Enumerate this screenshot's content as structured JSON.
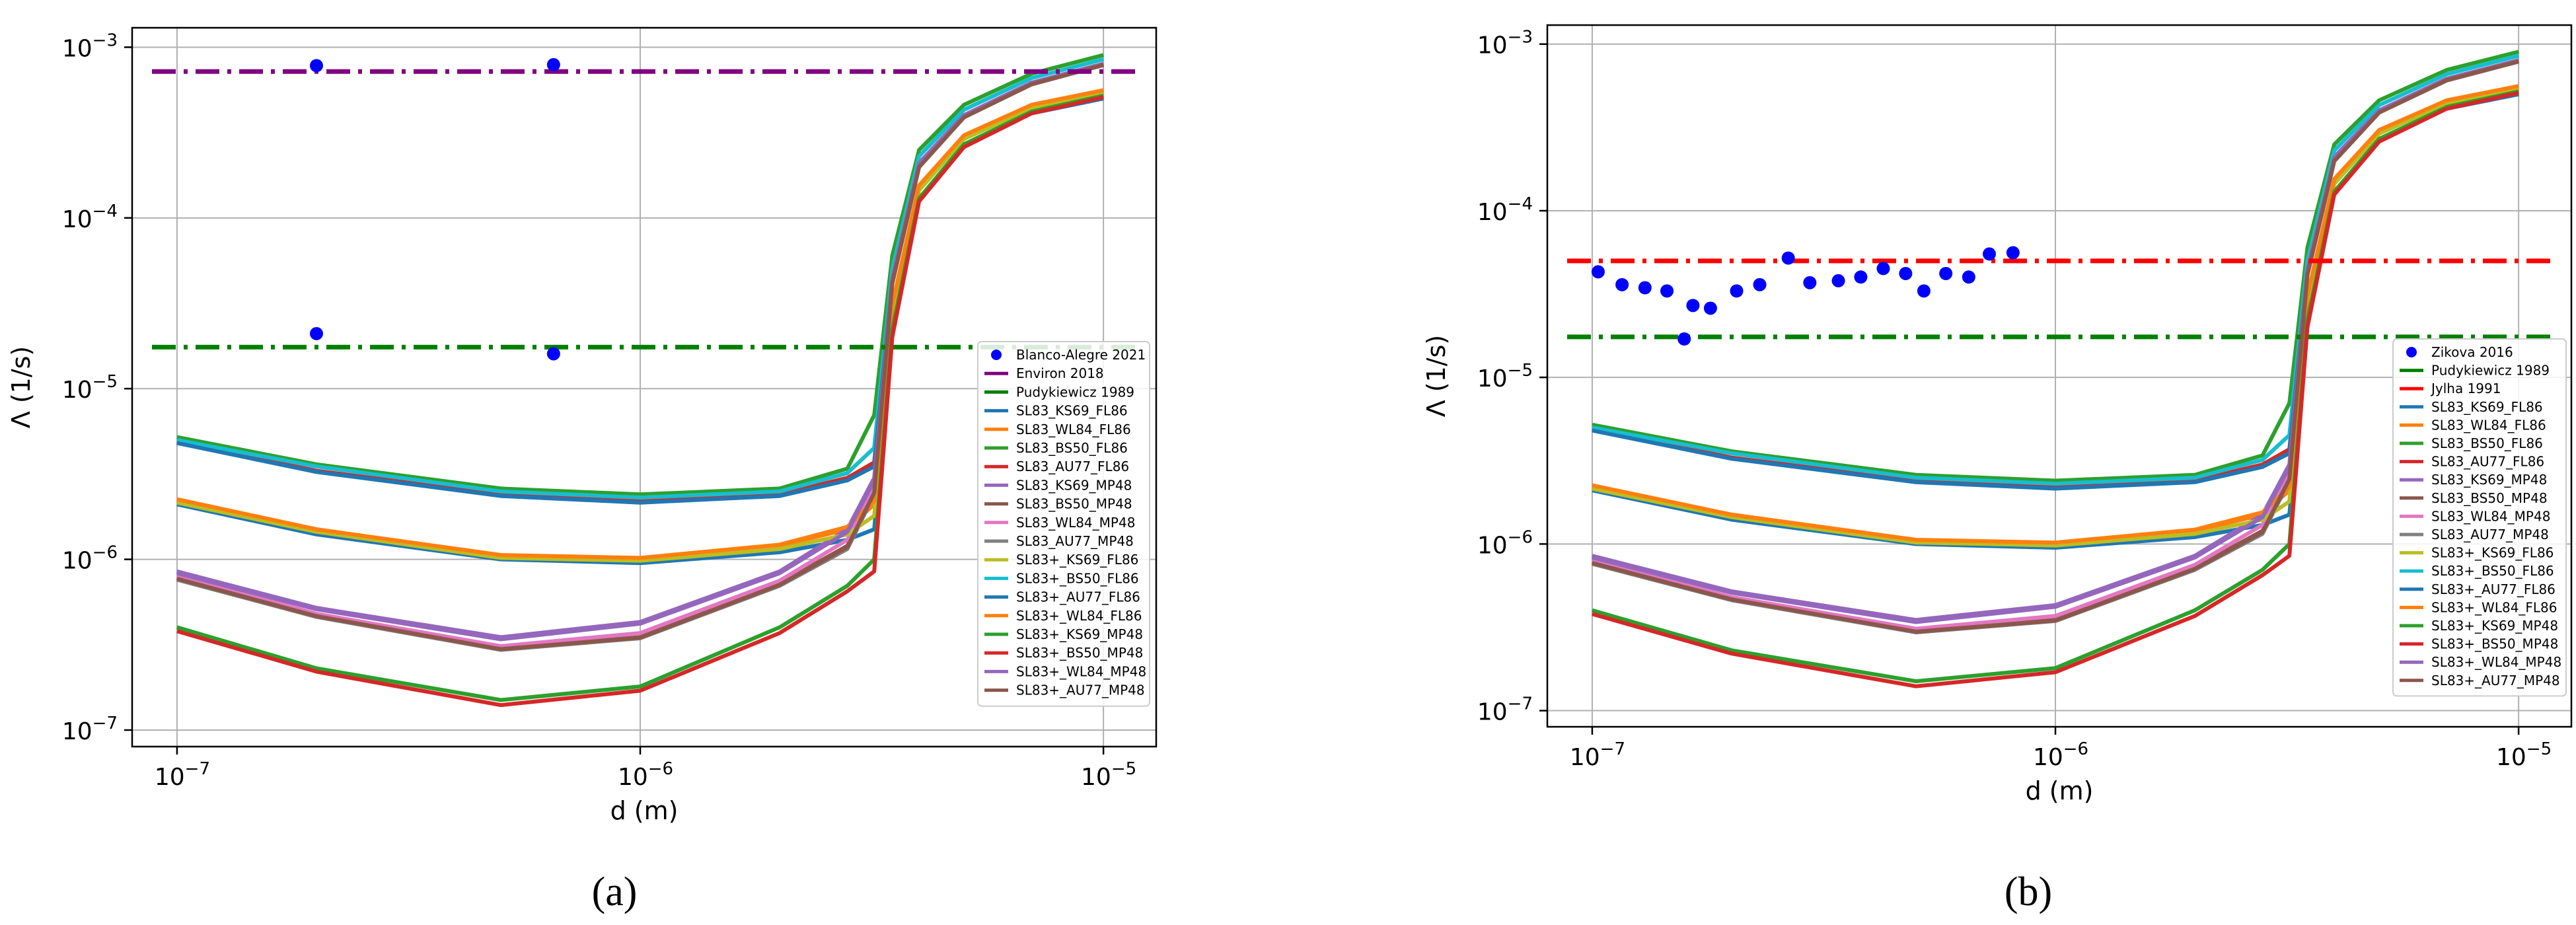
{
  "chart_data": [
    {
      "type": "line",
      "panel_label": "(a)",
      "xlabel": "d (m)",
      "ylabel": "Λ (1/s)",
      "xscale": "log",
      "yscale": "log",
      "xlim": [
        8e-08,
        1.3e-05
      ],
      "ylim": [
        8e-08,
        0.0013
      ],
      "grid": true,
      "legend_position": "right",
      "x_ticks": [
        {
          "value": 1e-07,
          "label": "10^-7"
        },
        {
          "value": 1e-06,
          "label": "10^-6"
        },
        {
          "value": 1e-05,
          "label": "10^-5"
        }
      ],
      "y_ticks": [
        {
          "value": 1e-07,
          "label": "10^-7"
        },
        {
          "value": 1e-06,
          "label": "10^-6"
        },
        {
          "value": 1e-05,
          "label": "10^-5"
        },
        {
          "value": 0.0001,
          "label": "10^-4"
        },
        {
          "value": 0.001,
          "label": "10^-3"
        }
      ],
      "scatter": {
        "name": "Blanco-Alegre 2021",
        "color": "#0000ff",
        "points": [
          [
            2e-07,
            0.00078
          ],
          [
            6.5e-07,
            0.00079
          ],
          [
            2e-07,
            2.1e-05
          ],
          [
            6.5e-07,
            1.6e-05
          ]
        ]
      },
      "reference_lines": [
        {
          "name": "Environ 2018",
          "color": "#800080",
          "value": 0.00072
        },
        {
          "name": "Pudykiewicz 1989",
          "color": "#008000",
          "value": 1.75e-05
        }
      ],
      "curve_x": [
        1e-07,
        2e-07,
        5e-07,
        1e-06,
        2e-06,
        2.8e-06,
        3.2e-06,
        3.5e-06,
        4e-06,
        5e-06,
        7e-06,
        1e-05
      ],
      "series": [
        {
          "name": "SL83_KS69_FL86",
          "color": "#1f77b4",
          "values": [
            2.1e-06,
            1.4e-06,
            1e-06,
            9.5e-07,
            1.1e-06,
            1.3e-06,
            1.5e-06,
            2.5e-05,
            0.00013,
            0.00027,
            0.00041,
            0.0005
          ]
        },
        {
          "name": "SL83_WL84_FL86",
          "color": "#ff7f0e",
          "values": [
            2.2e-06,
            1.5e-06,
            1.05e-06,
            1e-06,
            1.2e-06,
            1.5e-06,
            2.1e-06,
            3e-05,
            0.00015,
            0.0003,
            0.00045,
            0.00055
          ]
        },
        {
          "name": "SL83_BS50_FL86",
          "color": "#2ca02c",
          "values": [
            5.2e-06,
            3.6e-06,
            2.6e-06,
            2.4e-06,
            2.6e-06,
            3.4e-06,
            7e-06,
            6e-05,
            0.00025,
            0.00046,
            0.0007,
            0.0009
          ]
        },
        {
          "name": "SL83_AU77_FL86",
          "color": "#d62728",
          "values": [
            4.9e-06,
            3.3e-06,
            2.4e-06,
            2.2e-06,
            2.4e-06,
            3e-06,
            3.7e-06,
            4.5e-05,
            0.00021,
            0.0004,
            0.00062,
            0.0008
          ]
        },
        {
          "name": "SL83_KS69_MP48",
          "color": "#9467bd",
          "values": [
            8.5e-07,
            5.2e-07,
            3.5e-07,
            4.3e-07,
            8.5e-07,
            1.5e-06,
            3e-06,
            4.5e-05,
            0.00021,
            0.0004,
            0.00062,
            0.0008
          ]
        },
        {
          "name": "SL83_BS50_MP48",
          "color": "#8c564b",
          "values": [
            7.8e-07,
            4.7e-07,
            3e-07,
            3.5e-07,
            7.2e-07,
            1.2e-06,
            2.5e-06,
            4.2e-05,
            0.0002,
            0.00039,
            0.00061,
            0.00079
          ]
        },
        {
          "name": "SL83_WL84_MP48",
          "color": "#e377c2",
          "values": [
            8e-07,
            4.8e-07,
            3.1e-07,
            3.7e-07,
            7.5e-07,
            1.3e-06,
            2.6e-06,
            4.3e-05,
            0.000205,
            0.000395,
            0.000615,
            0.000795
          ]
        },
        {
          "name": "SL83_AU77_MP48",
          "color": "#7f7f7f",
          "values": [
            7.6e-07,
            4.6e-07,
            2.95e-07,
            3.45e-07,
            7e-07,
            1.15e-06,
            2.4e-06,
            4.1e-05,
            0.000198,
            0.000388,
            0.000605,
            0.000785
          ]
        },
        {
          "name": "SL83+_KS69_FL86",
          "color": "#bcbd22",
          "values": [
            2.15e-06,
            1.45e-06,
            1.02e-06,
            9.8e-07,
            1.15e-06,
            1.4e-06,
            1.8e-06,
            2.8e-05,
            0.000145,
            0.00029,
            0.00044,
            0.00054
          ]
        },
        {
          "name": "SL83+_BS50_FL86",
          "color": "#17becf",
          "values": [
            5e-06,
            3.5e-06,
            2.5e-06,
            2.3e-06,
            2.5e-06,
            3.2e-06,
            4.5e-06,
            5e-05,
            0.00023,
            0.00043,
            0.00066,
            0.00085
          ]
        },
        {
          "name": "SL83+_AU77_FL86",
          "color": "#1f77b4",
          "values": [
            4.8e-06,
            3.25e-06,
            2.35e-06,
            2.15e-06,
            2.35e-06,
            2.9e-06,
            3.5e-06,
            4.4e-05,
            0.000205,
            0.000395,
            0.00061,
            0.00079
          ]
        },
        {
          "name": "SL83+_WL84_FL86",
          "color": "#ff7f0e",
          "values": [
            2.25e-06,
            1.5e-06,
            1.06e-06,
            1.02e-06,
            1.22e-06,
            1.55e-06,
            2.2e-06,
            3.1e-05,
            0.000155,
            0.000305,
            0.00046,
            0.00056
          ]
        },
        {
          "name": "SL83+_KS69_MP48",
          "color": "#2ca02c",
          "values": [
            4e-07,
            2.3e-07,
            1.5e-07,
            1.8e-07,
            4e-07,
            7e-07,
            1e-06,
            2.2e-05,
            0.00013,
            0.00027,
            0.00042,
            0.00052
          ]
        },
        {
          "name": "SL83+_BS50_MP48",
          "color": "#d62728",
          "values": [
            3.8e-07,
            2.2e-07,
            1.4e-07,
            1.7e-07,
            3.7e-07,
            6.5e-07,
            8.5e-07,
            2e-05,
            0.000125,
            0.00026,
            0.00041,
            0.00051
          ]
        },
        {
          "name": "SL83+_WL84_MP48",
          "color": "#9467bd",
          "values": [
            8.3e-07,
            5.1e-07,
            3.4e-07,
            4.2e-07,
            8.3e-07,
            1.45e-06,
            2.9e-06,
            4.4e-05,
            0.000208,
            0.000398,
            0.000618,
            0.000798
          ]
        },
        {
          "name": "SL83+_AU77_MP48",
          "color": "#8c564b",
          "values": [
            7.7e-07,
            4.65e-07,
            2.98e-07,
            3.48e-07,
            7.1e-07,
            1.18e-06,
            2.45e-06,
            4.15e-05,
            0.000199,
            0.000389,
            0.000608,
            0.000788
          ]
        }
      ]
    },
    {
      "type": "line",
      "panel_label": "(b)",
      "xlabel": "d (m)",
      "ylabel": "Λ (1/s)",
      "xscale": "log",
      "yscale": "log",
      "xlim": [
        8e-08,
        1.3e-05
      ],
      "ylim": [
        8e-08,
        0.0013
      ],
      "grid": true,
      "legend_position": "right",
      "x_ticks": [
        {
          "value": 1e-07,
          "label": "10^-7"
        },
        {
          "value": 1e-06,
          "label": "10^-6"
        },
        {
          "value": 1e-05,
          "label": "10^-5"
        }
      ],
      "y_ticks": [
        {
          "value": 1e-07,
          "label": "10^-7"
        },
        {
          "value": 1e-06,
          "label": "10^-6"
        },
        {
          "value": 1e-05,
          "label": "10^-5"
        },
        {
          "value": 0.0001,
          "label": "10^-4"
        },
        {
          "value": 0.001,
          "label": "10^-3"
        }
      ],
      "scatter": {
        "name": "Zikova 2016",
        "color": "#0000ff",
        "points": [
          [
            1.03e-07,
            4.3e-05
          ],
          [
            1.16e-07,
            3.6e-05
          ],
          [
            1.3e-07,
            3.45e-05
          ],
          [
            1.45e-07,
            3.3e-05
          ],
          [
            1.58e-07,
            1.7e-05
          ],
          [
            1.65e-07,
            2.7e-05
          ],
          [
            1.8e-07,
            2.6e-05
          ],
          [
            2.05e-07,
            3.3e-05
          ],
          [
            2.3e-07,
            3.6e-05
          ],
          [
            2.65e-07,
            5.2e-05
          ],
          [
            2.95e-07,
            3.7e-05
          ],
          [
            3.4e-07,
            3.8e-05
          ],
          [
            3.8e-07,
            4e-05
          ],
          [
            4.25e-07,
            4.5e-05
          ],
          [
            4.75e-07,
            4.2e-05
          ],
          [
            5.2e-07,
            3.3e-05
          ],
          [
            5.8e-07,
            4.2e-05
          ],
          [
            6.5e-07,
            4e-05
          ],
          [
            7.2e-07,
            5.5e-05
          ],
          [
            8.1e-07,
            5.6e-05
          ]
        ]
      },
      "reference_lines": [
        {
          "name": "Pudykiewicz 1989",
          "color": "#008000",
          "value": 1.75e-05
        },
        {
          "name": "Jylha 1991",
          "color": "#ff0000",
          "value": 5e-05
        }
      ],
      "curve_x": [
        1e-07,
        2e-07,
        5e-07,
        1e-06,
        2e-06,
        2.8e-06,
        3.2e-06,
        3.5e-06,
        4e-06,
        5e-06,
        7e-06,
        1e-05
      ],
      "series": [
        {
          "name": "SL83_KS69_FL86",
          "color": "#1f77b4",
          "values": [
            2.1e-06,
            1.4e-06,
            1e-06,
            9.5e-07,
            1.1e-06,
            1.3e-06,
            1.5e-06,
            2.5e-05,
            0.00013,
            0.00027,
            0.00041,
            0.0005
          ]
        },
        {
          "name": "SL83_WL84_FL86",
          "color": "#ff7f0e",
          "values": [
            2.2e-06,
            1.5e-06,
            1.05e-06,
            1e-06,
            1.2e-06,
            1.5e-06,
            2.1e-06,
            3e-05,
            0.00015,
            0.0003,
            0.00045,
            0.00055
          ]
        },
        {
          "name": "SL83_BS50_FL86",
          "color": "#2ca02c",
          "values": [
            5.2e-06,
            3.6e-06,
            2.6e-06,
            2.4e-06,
            2.6e-06,
            3.4e-06,
            7e-06,
            6e-05,
            0.00025,
            0.00046,
            0.0007,
            0.0009
          ]
        },
        {
          "name": "SL83_AU77_FL86",
          "color": "#d62728",
          "values": [
            4.9e-06,
            3.3e-06,
            2.4e-06,
            2.2e-06,
            2.4e-06,
            3e-06,
            3.7e-06,
            4.5e-05,
            0.00021,
            0.0004,
            0.00062,
            0.0008
          ]
        },
        {
          "name": "SL83_KS69_MP48",
          "color": "#9467bd",
          "values": [
            8.5e-07,
            5.2e-07,
            3.5e-07,
            4.3e-07,
            8.5e-07,
            1.5e-06,
            3e-06,
            4.5e-05,
            0.00021,
            0.0004,
            0.00062,
            0.0008
          ]
        },
        {
          "name": "SL83_BS50_MP48",
          "color": "#8c564b",
          "values": [
            7.8e-07,
            4.7e-07,
            3e-07,
            3.5e-07,
            7.2e-07,
            1.2e-06,
            2.5e-06,
            4.2e-05,
            0.0002,
            0.00039,
            0.00061,
            0.00079
          ]
        },
        {
          "name": "SL83_WL84_MP48",
          "color": "#e377c2",
          "values": [
            8e-07,
            4.8e-07,
            3.1e-07,
            3.7e-07,
            7.5e-07,
            1.3e-06,
            2.6e-06,
            4.3e-05,
            0.000205,
            0.000395,
            0.000615,
            0.000795
          ]
        },
        {
          "name": "SL83_AU77_MP48",
          "color": "#7f7f7f",
          "values": [
            7.6e-07,
            4.6e-07,
            2.95e-07,
            3.45e-07,
            7e-07,
            1.15e-06,
            2.4e-06,
            4.1e-05,
            0.000198,
            0.000388,
            0.000605,
            0.000785
          ]
        },
        {
          "name": "SL83+_KS69_FL86",
          "color": "#bcbd22",
          "values": [
            2.15e-06,
            1.45e-06,
            1.02e-06,
            9.8e-07,
            1.15e-06,
            1.4e-06,
            1.8e-06,
            2.8e-05,
            0.000145,
            0.00029,
            0.00044,
            0.00054
          ]
        },
        {
          "name": "SL83+_BS50_FL86",
          "color": "#17becf",
          "values": [
            5e-06,
            3.5e-06,
            2.5e-06,
            2.3e-06,
            2.5e-06,
            3.2e-06,
            4.5e-06,
            5e-05,
            0.00023,
            0.00043,
            0.00066,
            0.00085
          ]
        },
        {
          "name": "SL83+_AU77_FL86",
          "color": "#1f77b4",
          "values": [
            4.8e-06,
            3.25e-06,
            2.35e-06,
            2.15e-06,
            2.35e-06,
            2.9e-06,
            3.5e-06,
            4.4e-05,
            0.000205,
            0.000395,
            0.00061,
            0.00079
          ]
        },
        {
          "name": "SL83+_WL84_FL86",
          "color": "#ff7f0e",
          "values": [
            2.25e-06,
            1.5e-06,
            1.06e-06,
            1.02e-06,
            1.22e-06,
            1.55e-06,
            2.2e-06,
            3.1e-05,
            0.000155,
            0.000305,
            0.00046,
            0.00056
          ]
        },
        {
          "name": "SL83+_KS69_MP48",
          "color": "#2ca02c",
          "values": [
            4e-07,
            2.3e-07,
            1.5e-07,
            1.8e-07,
            4e-07,
            7e-07,
            1e-06,
            2.2e-05,
            0.00013,
            0.00027,
            0.00042,
            0.00052
          ]
        },
        {
          "name": "SL83+_BS50_MP48",
          "color": "#d62728",
          "values": [
            3.8e-07,
            2.2e-07,
            1.4e-07,
            1.7e-07,
            3.7e-07,
            6.5e-07,
            8.5e-07,
            2e-05,
            0.000125,
            0.00026,
            0.00041,
            0.00051
          ]
        },
        {
          "name": "SL83+_WL84_MP48",
          "color": "#9467bd",
          "values": [
            8.3e-07,
            5.1e-07,
            3.4e-07,
            4.2e-07,
            8.3e-07,
            1.45e-06,
            2.9e-06,
            4.4e-05,
            0.000208,
            0.000398,
            0.000618,
            0.000798
          ]
        },
        {
          "name": "SL83+_AU77_MP48",
          "color": "#8c564b",
          "values": [
            7.7e-07,
            4.65e-07,
            2.98e-07,
            3.48e-07,
            7.1e-07,
            1.18e-06,
            2.45e-06,
            4.15e-05,
            0.000199,
            0.000389,
            0.000608,
            0.000788
          ]
        }
      ]
    }
  ]
}
